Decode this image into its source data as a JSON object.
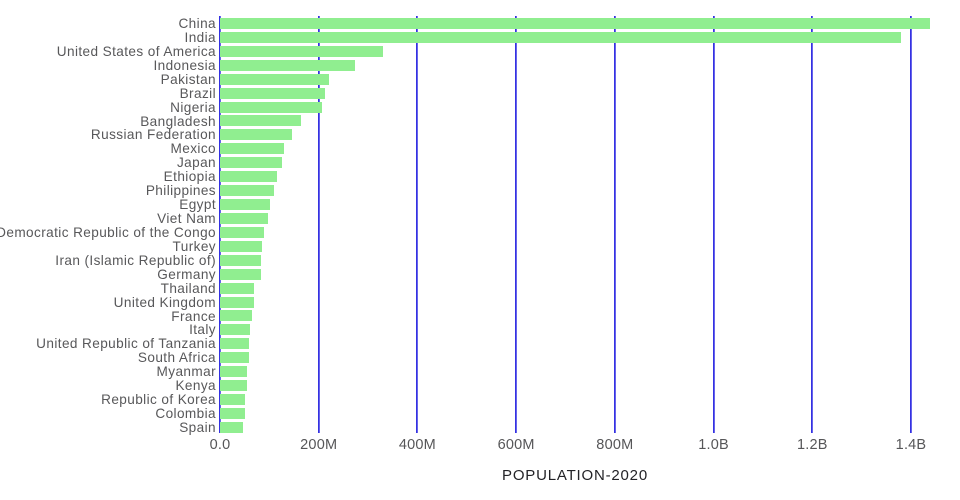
{
  "chart_data": {
    "type": "bar",
    "orientation": "horizontal",
    "title": "",
    "xlabel": "POPULATION-2020",
    "ylabel": "",
    "unit": "millions of people",
    "grid": "vertical-on",
    "legend": "none",
    "xlim": [
      0,
      1480
    ],
    "categories": [
      "China",
      "India",
      "United States of America",
      "Indonesia",
      "Pakistan",
      "Brazil",
      "Nigeria",
      "Bangladesh",
      "Russian Federation",
      "Mexico",
      "Japan",
      "Ethiopia",
      "Philippines",
      "Egypt",
      "Viet Nam",
      "Democratic Republic of the Congo",
      "Turkey",
      "Iran (Islamic Republic of)",
      "Germany",
      "Thailand",
      "United Kingdom",
      "France",
      "Italy",
      "United Republic of Tanzania",
      "South Africa",
      "Myanmar",
      "Kenya",
      "Republic of Korea",
      "Colombia",
      "Spain"
    ],
    "values": [
      1439,
      1380,
      331,
      274,
      221,
      213,
      206,
      165,
      146,
      129,
      126,
      115,
      110,
      102,
      97,
      90,
      84.3,
      84,
      83.8,
      69.8,
      67.9,
      65.3,
      60.5,
      59.7,
      59.3,
      54.4,
      53.8,
      51.3,
      50.9,
      46.8
    ],
    "x_ticks": [
      {
        "label": "0.0",
        "value": 0
      },
      {
        "label": "200M",
        "value": 200
      },
      {
        "label": "400M",
        "value": 400
      },
      {
        "label": "600M",
        "value": 600
      },
      {
        "label": "800M",
        "value": 800
      },
      {
        "label": "1.0B",
        "value": 1000
      },
      {
        "label": "1.2B",
        "value": 1200
      },
      {
        "label": "1.4B",
        "value": 1400
      }
    ],
    "colors": {
      "bar": "#90EE90",
      "gridline": "#3431e2",
      "category_label": "#58585a",
      "tick_label": "#565658",
      "axis_label": "#232327",
      "background": "#ffffff"
    }
  }
}
